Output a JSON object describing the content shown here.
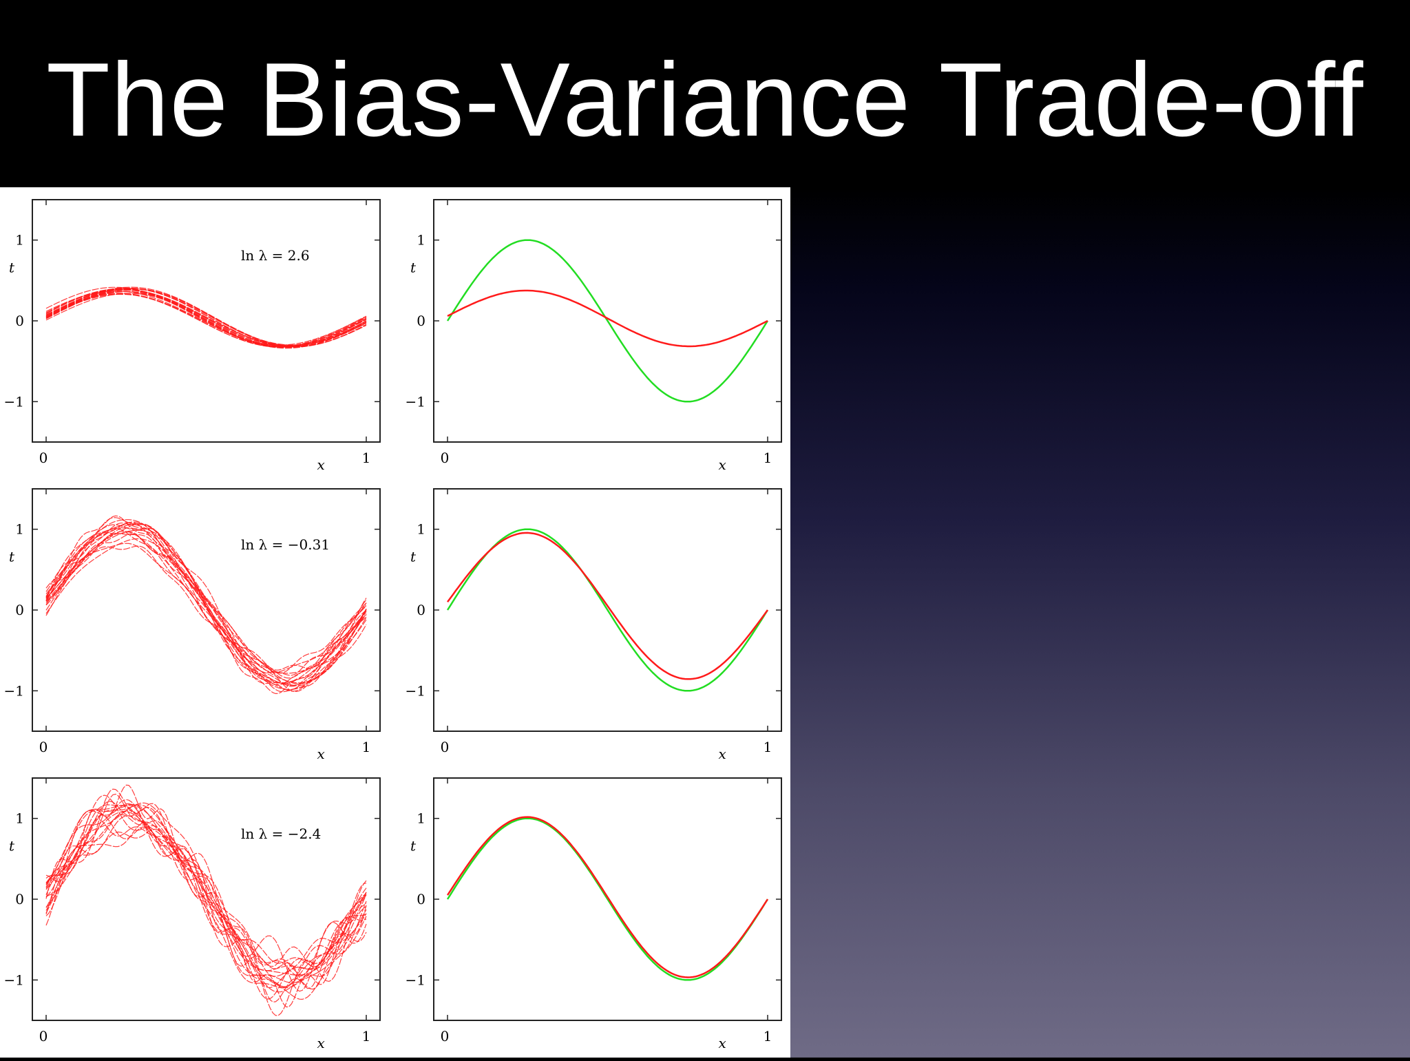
{
  "slide": {
    "title": "The Bias-Variance Trade-off"
  },
  "colors": {
    "fit": "#ff1a1a",
    "truth": "#22dd22",
    "background_top": "#000000",
    "background_bottom": "#6f6b86"
  },
  "chart_data": [
    {
      "type": "line",
      "panel": "row1-left",
      "annotation": "ln λ = 2.6",
      "xlabel": "x",
      "ylabel": "t",
      "xticks": [
        "0",
        "1"
      ],
      "yticks": [
        "−1",
        "0",
        "1"
      ],
      "xlim": [
        0,
        1
      ],
      "ylim": [
        -1.5,
        1.5
      ],
      "amplitude": 0.33,
      "offset": 0.06,
      "n_fits": 20,
      "spread": 0.05,
      "wiggle": 0.0
    },
    {
      "type": "line",
      "panel": "row1-right",
      "xlabel": "x",
      "ylabel": "t",
      "xticks": [
        "0",
        "1"
      ],
      "yticks": [
        "−1",
        "0",
        "1"
      ],
      "xlim": [
        0,
        1
      ],
      "ylim": [
        -1.5,
        1.5
      ],
      "series": [
        {
          "name": "",
          "color": "truth",
          "function": "sin(2πx)"
        },
        {
          "name": "",
          "color": "fit",
          "amplitude": 0.33,
          "offset": 0.06
        }
      ]
    },
    {
      "type": "line",
      "panel": "row2-left",
      "annotation": "ln λ = −0.31",
      "xlabel": "x",
      "ylabel": "t",
      "xticks": [
        "0",
        "1"
      ],
      "yticks": [
        "−1",
        "0",
        "1"
      ],
      "xlim": [
        0,
        1
      ],
      "ylim": [
        -1.5,
        1.5
      ],
      "amplitude": 0.88,
      "offset": 0.12,
      "n_fits": 20,
      "spread": 0.15,
      "wiggle": 0.06
    },
    {
      "type": "line",
      "panel": "row2-right",
      "xlabel": "x",
      "ylabel": "t",
      "xticks": [
        "0",
        "1"
      ],
      "yticks": [
        "−1",
        "0",
        "1"
      ],
      "xlim": [
        0,
        1
      ],
      "ylim": [
        -1.5,
        1.5
      ],
      "series": [
        {
          "name": "",
          "color": "truth",
          "function": "sin(2πx)"
        },
        {
          "name": "",
          "color": "fit",
          "amplitude": 0.88,
          "offset": 0.1
        }
      ]
    },
    {
      "type": "line",
      "panel": "row3-left",
      "annotation": "ln λ = −2.4",
      "xlabel": "x",
      "ylabel": "t",
      "xticks": [
        "0",
        "1"
      ],
      "yticks": [
        "−1",
        "0",
        "1"
      ],
      "xlim": [
        0,
        1
      ],
      "ylim": [
        -1.5,
        1.5
      ],
      "amplitude": 1.0,
      "offset": 0.08,
      "n_fits": 20,
      "spread": 0.2,
      "wiggle": 0.18
    },
    {
      "type": "line",
      "panel": "row3-right",
      "xlabel": "x",
      "ylabel": "t",
      "xticks": [
        "0",
        "1"
      ],
      "yticks": [
        "−1",
        "0",
        "1"
      ],
      "xlim": [
        0,
        1
      ],
      "ylim": [
        -1.5,
        1.5
      ],
      "series": [
        {
          "name": "",
          "color": "truth",
          "function": "sin(2πx)"
        },
        {
          "name": "",
          "color": "fit",
          "amplitude": 0.98,
          "offset": 0.05
        }
      ]
    }
  ]
}
